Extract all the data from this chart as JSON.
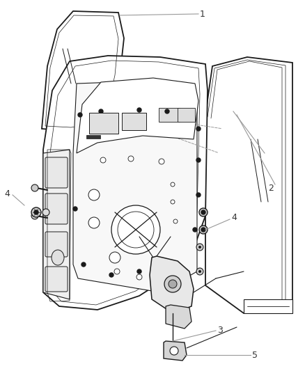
{
  "bg_color": "#ffffff",
  "line_color": "#1a1a1a",
  "label_color": "#333333",
  "callout_color": "#999999",
  "fig_width": 4.38,
  "fig_height": 5.33,
  "dpi": 100
}
